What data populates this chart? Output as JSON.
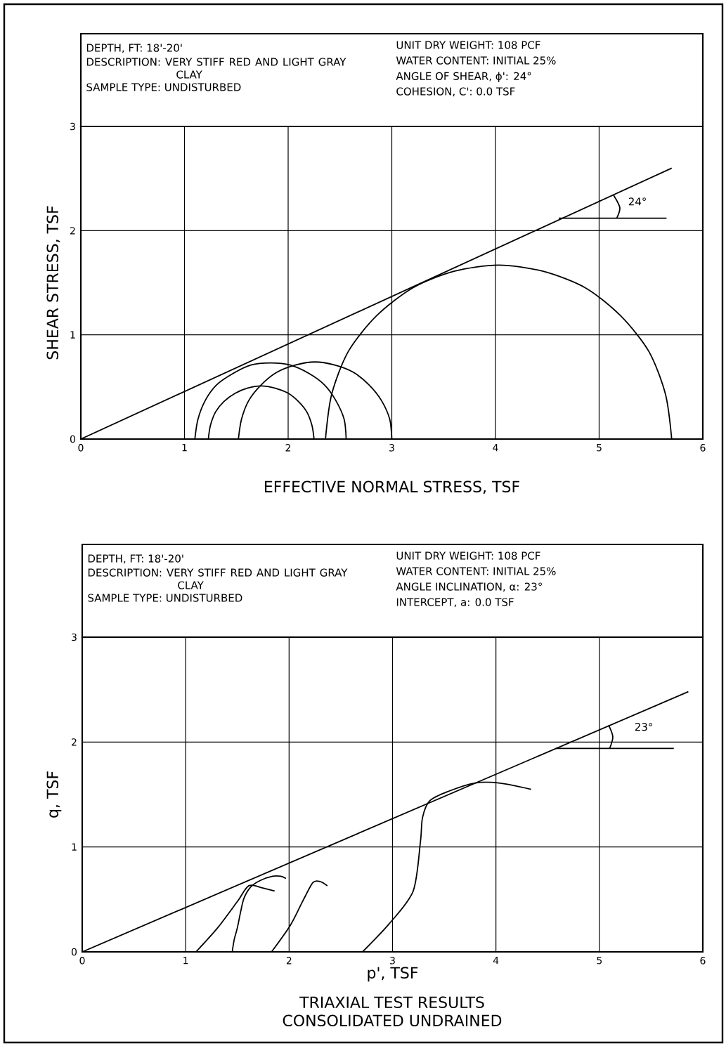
{
  "chart_data": [
    {
      "type": "line",
      "xlabel": "EFFECTIVE NORMAL STRESS, TSF",
      "ylabel": "SHEAR STRESS, TSF",
      "xlim": [
        0,
        6
      ],
      "ylim": [
        0,
        3
      ],
      "xticks": [
        0,
        1,
        2,
        3,
        4,
        5,
        6
      ],
      "yticks": [
        0,
        1,
        2,
        3
      ],
      "grid": true,
      "annotations": [
        "DEPTH, FT: 18'-20'",
        "DESCRIPTION: VERY STIFF RED AND LIGHT GRAY CLAY",
        "SAMPLE TYPE: UNDISTURBED",
        "UNIT DRY WEIGHT: 108 PCF",
        "WATER CONTENT: INITIAL 25%",
        "ANGLE OF SHEAR, ϕ': 24°",
        "COHESION, C': 0.0 TSF",
        "24°"
      ],
      "series": [
        {
          "color": "#000000",
          "x": [
            0,
            5.7
          ],
          "values": [
            0,
            2.6
          ]
        },
        {
          "color": "#000000",
          "x": [
            2.56,
            2.54,
            2.46,
            2.35,
            2.2,
            2.02,
            1.83,
            1.64,
            1.47,
            1.31,
            1.2,
            1.13,
            1.1
          ],
          "values": [
            0,
            0.19,
            0.37,
            0.52,
            0.63,
            0.71,
            0.73,
            0.71,
            0.63,
            0.52,
            0.37,
            0.19,
            0
          ]
        },
        {
          "color": "#000000",
          "x": [
            2.25,
            2.23,
            2.18,
            2.1,
            2.0,
            1.87,
            1.74,
            1.61,
            1.49,
            1.38,
            1.3,
            1.25,
            1.23
          ],
          "values": [
            0,
            0.13,
            0.26,
            0.36,
            0.44,
            0.49,
            0.51,
            0.49,
            0.44,
            0.36,
            0.26,
            0.13,
            0
          ]
        },
        {
          "color": "#000000",
          "x": [
            3.0,
            2.98,
            2.9,
            2.78,
            2.63,
            2.45,
            2.26,
            2.07,
            1.89,
            1.74,
            1.62,
            1.55,
            1.52
          ],
          "values": [
            0,
            0.19,
            0.37,
            0.52,
            0.64,
            0.71,
            0.74,
            0.71,
            0.64,
            0.52,
            0.37,
            0.19,
            0
          ]
        },
        {
          "color": "#000000",
          "x": [
            5.7,
            5.64,
            5.48,
            5.21,
            4.87,
            4.46,
            4.03,
            3.6,
            3.2,
            2.85,
            2.58,
            2.42,
            2.36
          ],
          "values": [
            0,
            0.43,
            0.84,
            1.18,
            1.45,
            1.61,
            1.67,
            1.61,
            1.45,
            1.18,
            0.84,
            0.43,
            0
          ]
        },
        {
          "color": "#000000",
          "x": [
            4.61,
            5.65
          ],
          "values": [
            2.12,
            2.12
          ]
        },
        {
          "color": "#000000",
          "x": [
            5.17,
            5.2,
            5.14
          ],
          "values": [
            2.12,
            2.22,
            2.34
          ]
        }
      ]
    },
    {
      "type": "line",
      "xlabel": "p', TSF",
      "ylabel": "q, TSF",
      "xlim": [
        0,
        6
      ],
      "ylim": [
        0,
        3
      ],
      "xticks": [
        0,
        1,
        2,
        3,
        4,
        5,
        6
      ],
      "yticks": [
        0,
        1,
        2,
        3
      ],
      "grid": true,
      "annotations": [
        "DEPTH, FT: 18'-20'",
        "DESCRIPTION: VERY STIFF RED AND LIGHT GRAY CLAY",
        "SAMPLE TYPE: UNDISTURBED",
        "UNIT DRY WEIGHT: 108 PCF",
        "WATER CONTENT: INITIAL 25%",
        "ANGLE INCLINATION, α: 23°",
        "INTERCEPT, a: 0.0 TSF",
        "23°",
        "TRIAXIAL TEST RESULTS",
        "CONSOLIDATED UNDRAINED"
      ],
      "series": [
        {
          "color": "#000000",
          "x": [
            0,
            5.86
          ],
          "values": [
            0,
            2.48
          ]
        },
        {
          "color": "#000000",
          "x": [
            1.1,
            1.31,
            1.5,
            1.61,
            1.74,
            1.86
          ],
          "values": [
            0,
            0.23,
            0.48,
            0.63,
            0.61,
            0.58
          ]
        },
        {
          "color": "#000000",
          "x": [
            1.45,
            1.47,
            1.5,
            1.56,
            1.63,
            1.72,
            1.84,
            1.92,
            1.97
          ],
          "values": [
            0,
            0.12,
            0.23,
            0.5,
            0.62,
            0.68,
            0.72,
            0.72,
            0.7
          ]
        },
        {
          "color": "#000000",
          "x": [
            1.83,
            2.01,
            2.13,
            2.23,
            2.3,
            2.37
          ],
          "values": [
            0,
            0.25,
            0.48,
            0.66,
            0.67,
            0.63
          ]
        },
        {
          "color": "#000000",
          "x": [
            2.71,
            2.97,
            3.2,
            3.27,
            3.29,
            3.36,
            3.54,
            3.8,
            4.03,
            4.34
          ],
          "values": [
            0,
            0.27,
            0.58,
            1.05,
            1.28,
            1.44,
            1.53,
            1.61,
            1.61,
            1.55
          ]
        },
        {
          "color": "#000000",
          "x": [
            4.58,
            5.72
          ],
          "values": [
            1.94,
            1.94
          ]
        },
        {
          "color": "#000000",
          "x": [
            5.1,
            5.13,
            5.09
          ],
          "values": [
            1.94,
            2.05,
            2.16
          ]
        }
      ]
    }
  ]
}
